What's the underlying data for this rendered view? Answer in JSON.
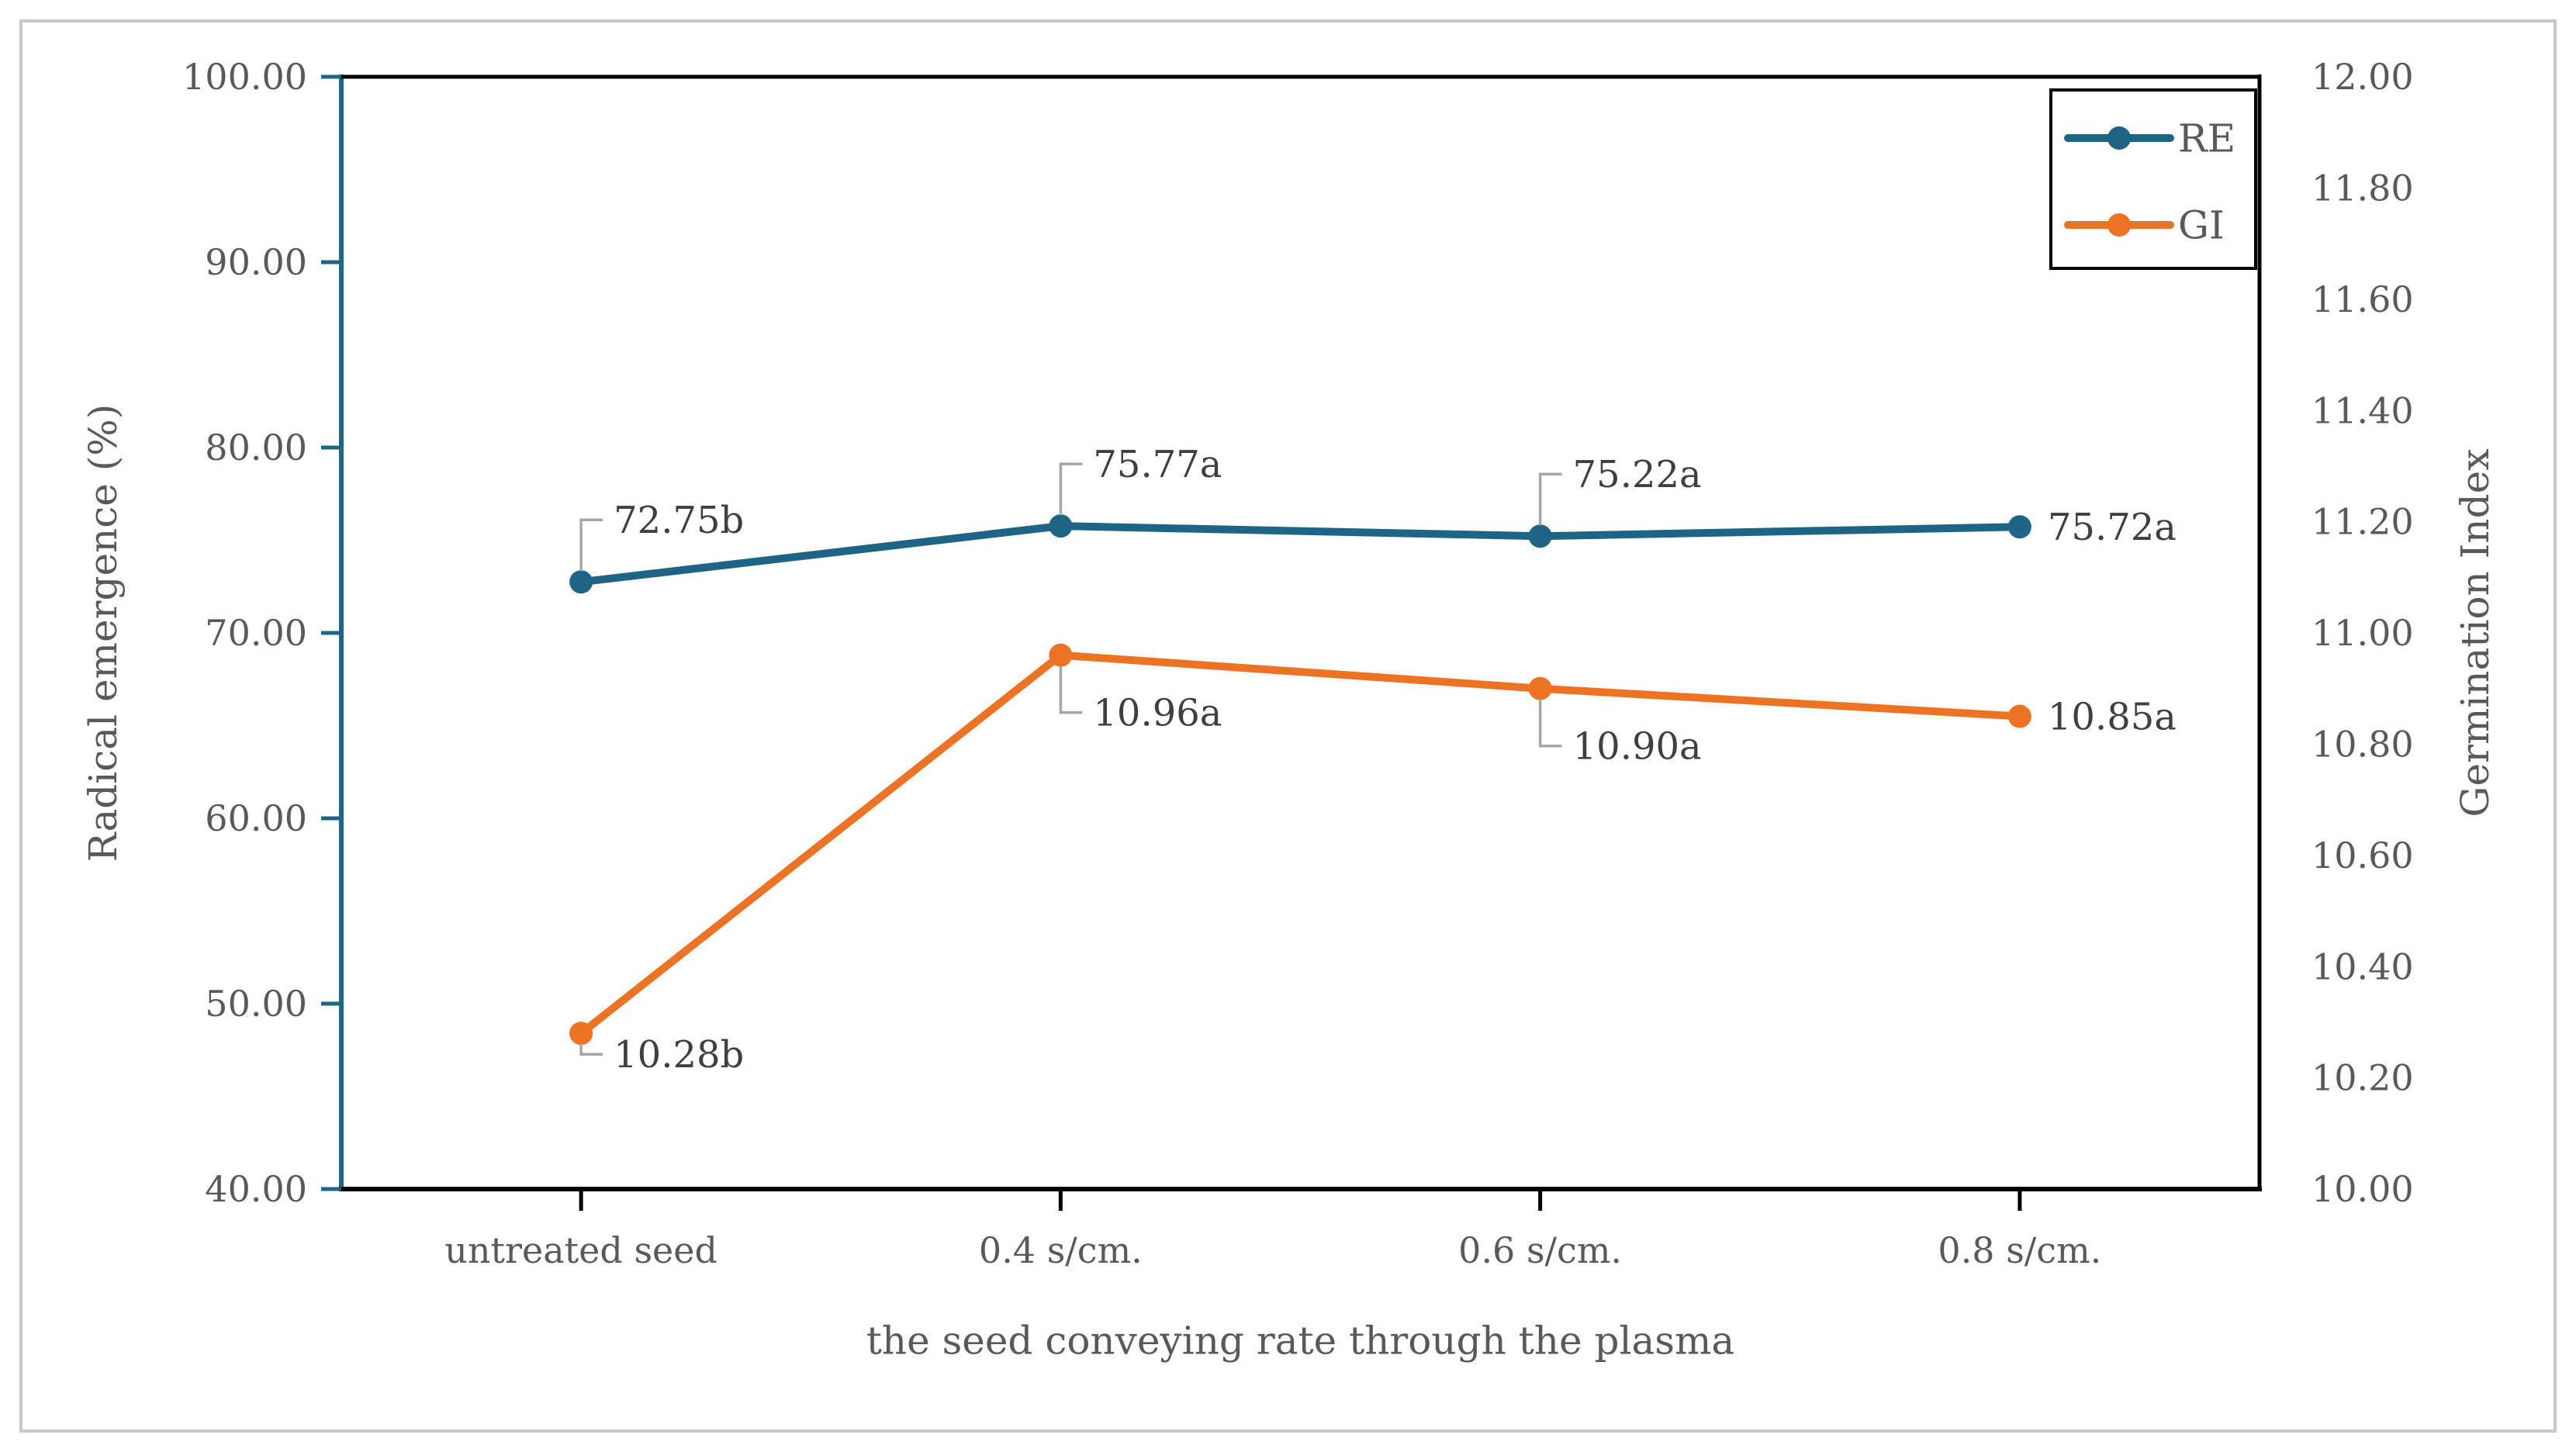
{
  "figure": {
    "background": "#ffffff",
    "border_color": "#c9c9c9"
  },
  "chart_data": {
    "type": "line",
    "categories": [
      "untreated seed",
      "0.4 s/cm.",
      "0.6 s/cm.",
      "0.8 s/cm."
    ],
    "xlabel": "the seed conveying rate through the plasma",
    "series": [
      {
        "name": "RE",
        "axis": "left",
        "color": "#1e6585",
        "values": [
          72.75,
          75.77,
          75.22,
          75.72
        ],
        "data_labels": [
          "72.75b",
          "75.77a",
          "75.22a",
          "75.72a"
        ],
        "label_modes": [
          "elbow-up",
          "elbow-up",
          "elbow-up",
          "right"
        ]
      },
      {
        "name": "GI",
        "axis": "right",
        "color": "#ed7324",
        "values": [
          10.28,
          10.96,
          10.9,
          10.85
        ],
        "data_labels": [
          "10.28b",
          "10.96a",
          "10.90a",
          "10.85a"
        ],
        "label_modes": [
          "elbow-down-small",
          "elbow-down",
          "elbow-down",
          "right"
        ]
      }
    ],
    "left_axis": {
      "title": "Radical emergence (%)",
      "min": 40,
      "max": 100,
      "step": 10,
      "tick_labels": [
        "40.00",
        "50.00",
        "60.00",
        "70.00",
        "80.00",
        "90.00",
        "100.00"
      ],
      "color": "#1e6585"
    },
    "right_axis": {
      "title": "Germination Index",
      "min": 10,
      "max": 12,
      "step": 0.2,
      "tick_labels": [
        "10.00",
        "10.20",
        "10.40",
        "10.60",
        "10.80",
        "11.00",
        "11.20",
        "11.40",
        "11.60",
        "11.80",
        "12.00"
      ],
      "color": "#000000"
    },
    "legend": {
      "position": "top-right",
      "entries": [
        "RE",
        "GI"
      ]
    },
    "grid": "off",
    "styles": {
      "text_color": "#595959",
      "data_label_color": "#3f3f3f",
      "leader_line_color": "#a6a6a6",
      "axis_black": "#000000"
    }
  }
}
